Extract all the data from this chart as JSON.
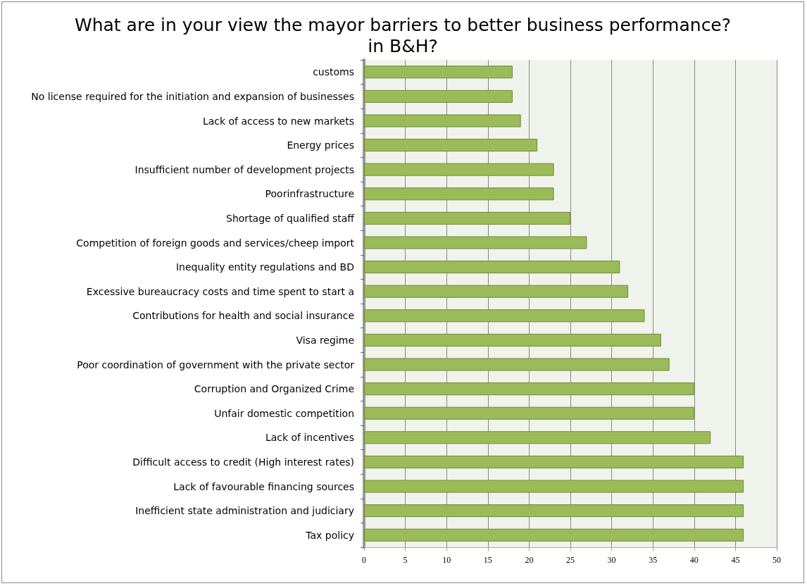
{
  "chart_data": {
    "type": "bar",
    "orientation": "horizontal",
    "title": "What are in your view the mayor barriers to better business performance?\nin B&H?",
    "categories": [
      "customs",
      "No license required for the initiation and expansion of businesses",
      "Lack of access to new markets",
      "Energy prices",
      "Insufficient number of development projects",
      "Poorinfrastructure",
      "Shortage of qualified staff",
      "Competition of foreign goods and services/cheep import",
      "Inequality entity regulations and BD",
      "Excessive bureaucracy costs and time spent to start a",
      "Contributions for health and social insurance",
      "Visa regime",
      "Poor coordination of government with the private sector",
      "Corruption and Organized Crime",
      "Unfair domestic competition",
      "Lack of incentives",
      "Difficult access to credit (High interest rates)",
      "Lack of favourable financing sources",
      "Inefficient state administration and judiciary",
      "Tax policy"
    ],
    "values": [
      18,
      18,
      19,
      21,
      23,
      23,
      25,
      27,
      31,
      32,
      34,
      36,
      37,
      40,
      40,
      42,
      46,
      46,
      46,
      46
    ],
    "color": "#9bbb59",
    "xlim": [
      0,
      50
    ],
    "xticks": [
      0,
      5,
      10,
      15,
      20,
      25,
      30,
      35,
      40,
      45,
      50
    ],
    "grid": "x"
  }
}
